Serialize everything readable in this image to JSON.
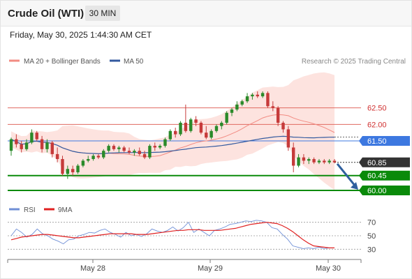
{
  "header": {
    "title": "Crude Oil (WTI)",
    "timeframe": "30 MIN"
  },
  "datetime": "Friday, May 30, 2025 1:44:30 AM CET",
  "legend": {
    "bollinger": "MA 20 + Bollinger Bands",
    "ma50": "MA 50",
    "credit": "Research © 2025 Trading Central",
    "rsi": "RSI",
    "rsi_ma": "9MA"
  },
  "colors": {
    "bollinger": "#f28b82",
    "band_fill": "#fde3df",
    "ma50": "#335a9f",
    "support": "#0a8a0a",
    "pivot": "#3d78e0",
    "resistance": "#e06a60",
    "last_price": "#333333",
    "forecast_arrow": "#2f5f9e",
    "candle_up": "#2a8a2a",
    "candle_down": "#c63a3a",
    "rsi": "#6f8fd6",
    "rsi_ma": "#e02020"
  },
  "chart_data": [
    {
      "type": "candlestick",
      "title": "Crude Oil (WTI)",
      "x_ticks": [
        "May 28",
        "May 29",
        "May 30"
      ],
      "ylim": [
        59.7,
        63.2
      ],
      "series_ohlc": [
        {
          "o": 61.2,
          "h": 61.6,
          "l": 61.05,
          "c": 61.55
        },
        {
          "o": 61.55,
          "h": 61.7,
          "l": 61.3,
          "c": 61.4
        },
        {
          "o": 61.4,
          "h": 61.5,
          "l": 61.15,
          "c": 61.25
        },
        {
          "o": 61.25,
          "h": 61.55,
          "l": 61.2,
          "c": 61.45
        },
        {
          "o": 61.45,
          "h": 61.85,
          "l": 61.4,
          "c": 61.75
        },
        {
          "o": 61.75,
          "h": 61.8,
          "l": 61.5,
          "c": 61.55
        },
        {
          "o": 61.55,
          "h": 61.65,
          "l": 61.15,
          "c": 61.25
        },
        {
          "o": 61.25,
          "h": 61.55,
          "l": 61.15,
          "c": 61.45
        },
        {
          "o": 61.45,
          "h": 61.5,
          "l": 61.0,
          "c": 61.1
        },
        {
          "o": 61.1,
          "h": 61.3,
          "l": 60.85,
          "c": 60.95
        },
        {
          "o": 60.95,
          "h": 61.05,
          "l": 60.45,
          "c": 60.5
        },
        {
          "o": 60.5,
          "h": 60.75,
          "l": 60.35,
          "c": 60.65
        },
        {
          "o": 60.65,
          "h": 60.75,
          "l": 60.45,
          "c": 60.55
        },
        {
          "o": 60.55,
          "h": 60.8,
          "l": 60.5,
          "c": 60.75
        },
        {
          "o": 60.75,
          "h": 60.95,
          "l": 60.7,
          "c": 60.9
        },
        {
          "o": 60.9,
          "h": 61.05,
          "l": 60.85,
          "c": 60.95
        },
        {
          "o": 60.95,
          "h": 61.1,
          "l": 60.9,
          "c": 61.05
        },
        {
          "o": 61.05,
          "h": 61.1,
          "l": 60.95,
          "c": 61.0
        },
        {
          "o": 61.0,
          "h": 61.25,
          "l": 60.95,
          "c": 61.2
        },
        {
          "o": 61.2,
          "h": 61.4,
          "l": 61.15,
          "c": 61.35
        },
        {
          "o": 61.35,
          "h": 61.4,
          "l": 61.2,
          "c": 61.25
        },
        {
          "o": 61.25,
          "h": 61.35,
          "l": 61.15,
          "c": 61.3
        },
        {
          "o": 61.3,
          "h": 61.35,
          "l": 61.15,
          "c": 61.2
        },
        {
          "o": 61.2,
          "h": 61.3,
          "l": 61.1,
          "c": 61.15
        },
        {
          "o": 61.15,
          "h": 61.25,
          "l": 61.05,
          "c": 61.2
        },
        {
          "o": 61.2,
          "h": 61.3,
          "l": 61.05,
          "c": 61.1
        },
        {
          "o": 61.1,
          "h": 61.2,
          "l": 60.95,
          "c": 61.0
        },
        {
          "o": 61.0,
          "h": 61.4,
          "l": 60.95,
          "c": 61.35
        },
        {
          "o": 61.35,
          "h": 61.45,
          "l": 61.2,
          "c": 61.3
        },
        {
          "o": 61.3,
          "h": 61.4,
          "l": 61.25,
          "c": 61.35
        },
        {
          "o": 61.35,
          "h": 61.6,
          "l": 61.3,
          "c": 61.55
        },
        {
          "o": 61.55,
          "h": 61.85,
          "l": 61.5,
          "c": 61.8
        },
        {
          "o": 61.8,
          "h": 61.9,
          "l": 61.6,
          "c": 61.7
        },
        {
          "o": 61.7,
          "h": 62.1,
          "l": 61.65,
          "c": 62.05
        },
        {
          "o": 62.05,
          "h": 62.6,
          "l": 61.75,
          "c": 61.8
        },
        {
          "o": 61.8,
          "h": 62.2,
          "l": 61.75,
          "c": 62.15
        },
        {
          "o": 62.15,
          "h": 62.25,
          "l": 61.95,
          "c": 62.05
        },
        {
          "o": 62.05,
          "h": 62.1,
          "l": 61.7,
          "c": 61.75
        },
        {
          "o": 61.75,
          "h": 61.95,
          "l": 61.55,
          "c": 61.6
        },
        {
          "o": 61.6,
          "h": 61.85,
          "l": 61.55,
          "c": 61.8
        },
        {
          "o": 61.8,
          "h": 62.0,
          "l": 61.75,
          "c": 61.95
        },
        {
          "o": 61.95,
          "h": 62.1,
          "l": 61.85,
          "c": 62.05
        },
        {
          "o": 62.05,
          "h": 62.4,
          "l": 62.0,
          "c": 62.35
        },
        {
          "o": 62.35,
          "h": 62.5,
          "l": 62.25,
          "c": 62.45
        },
        {
          "o": 62.45,
          "h": 62.7,
          "l": 62.4,
          "c": 62.6
        },
        {
          "o": 62.6,
          "h": 62.75,
          "l": 62.55,
          "c": 62.7
        },
        {
          "o": 62.7,
          "h": 62.95,
          "l": 62.65,
          "c": 62.85
        },
        {
          "o": 62.85,
          "h": 62.95,
          "l": 62.75,
          "c": 62.9
        },
        {
          "o": 62.9,
          "h": 63.0,
          "l": 62.8,
          "c": 62.85
        },
        {
          "o": 62.85,
          "h": 63.0,
          "l": 62.8,
          "c": 62.95
        },
        {
          "o": 62.95,
          "h": 63.0,
          "l": 62.5,
          "c": 62.55
        },
        {
          "o": 62.55,
          "h": 62.7,
          "l": 62.4,
          "c": 62.5
        },
        {
          "o": 62.5,
          "h": 62.55,
          "l": 61.95,
          "c": 62.05
        },
        {
          "o": 62.05,
          "h": 62.1,
          "l": 61.75,
          "c": 61.85
        },
        {
          "o": 61.85,
          "h": 61.95,
          "l": 61.2,
          "c": 61.3
        },
        {
          "o": 61.3,
          "h": 61.45,
          "l": 60.55,
          "c": 60.75
        },
        {
          "o": 60.75,
          "h": 61.1,
          "l": 60.7,
          "c": 61.0
        },
        {
          "o": 61.0,
          "h": 61.1,
          "l": 60.8,
          "c": 60.9
        },
        {
          "o": 60.9,
          "h": 61.0,
          "l": 60.8,
          "c": 60.95
        },
        {
          "o": 60.95,
          "h": 61.0,
          "l": 60.8,
          "c": 60.85
        },
        {
          "o": 60.85,
          "h": 60.95,
          "l": 60.8,
          "c": 60.9
        },
        {
          "o": 60.9,
          "h": 60.95,
          "l": 60.8,
          "c": 60.85
        },
        {
          "o": 60.85,
          "h": 60.95,
          "l": 60.8,
          "c": 60.9
        },
        {
          "o": 60.9,
          "h": 60.95,
          "l": 60.82,
          "c": 60.85
        }
      ],
      "levels": [
        {
          "value": 62.5,
          "label": "62.50",
          "kind": "resistance"
        },
        {
          "value": 62.0,
          "label": "62.00",
          "kind": "resistance"
        },
        {
          "value": 61.5,
          "label": "61.50",
          "kind": "pivot"
        },
        {
          "value": 60.85,
          "label": "60.85",
          "kind": "last_price"
        },
        {
          "value": 60.45,
          "label": "60.45",
          "kind": "support"
        },
        {
          "value": 60.0,
          "label": "60.00",
          "kind": "support"
        }
      ],
      "forecast": {
        "from": 60.85,
        "to": 60.0,
        "direction": "down"
      }
    },
    {
      "type": "line",
      "title": "RSI",
      "ylim": [
        20,
        80
      ],
      "y_ticks": [
        70,
        50,
        30
      ],
      "series": [
        {
          "name": "RSI",
          "values": [
            50,
            60,
            55,
            48,
            52,
            60,
            53,
            50,
            45,
            42,
            38,
            44,
            45,
            50,
            52,
            55,
            54,
            58,
            60,
            55,
            52,
            48,
            55,
            50,
            52,
            49,
            53,
            60,
            57,
            55,
            58,
            63,
            57,
            62,
            70,
            55,
            60,
            55,
            50,
            58,
            60,
            63,
            67,
            68,
            70,
            72,
            71,
            73,
            72,
            70,
            62,
            60,
            52,
            45,
            35,
            33,
            31,
            32,
            31,
            33,
            31,
            32,
            32
          ]
        },
        {
          "name": "9MA",
          "values": [
            44,
            46,
            48,
            49,
            50,
            51,
            52,
            52,
            51,
            50,
            49,
            48,
            47,
            47,
            48,
            49,
            50,
            51,
            52,
            53,
            53,
            53,
            53,
            53,
            52,
            52,
            52,
            53,
            54,
            55,
            56,
            57,
            58,
            58,
            59,
            59,
            59,
            58,
            58,
            58,
            58,
            59,
            60,
            61,
            63,
            65,
            67,
            68,
            69,
            70,
            69,
            68,
            65,
            61,
            56,
            50,
            44,
            39,
            35,
            34,
            33,
            32,
            32
          ]
        }
      ]
    }
  ]
}
